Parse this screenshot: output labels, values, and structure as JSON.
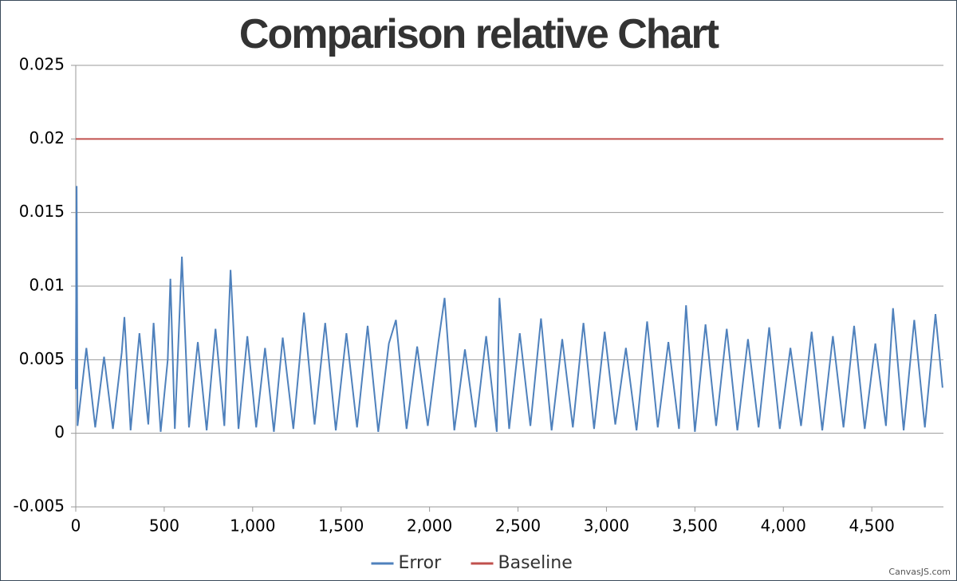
{
  "chart_data": {
    "type": "line",
    "title": "Comparison relative Chart",
    "credit": "CanvasJS.com",
    "xlim": [
      0,
      4905
    ],
    "ylim": [
      -0.005,
      0.025
    ],
    "xticks": [
      0,
      500,
      {
        "value": 1000,
        "label": "1,000"
      },
      {
        "value": 1500,
        "label": "1,500"
      },
      {
        "value": 2000,
        "label": "2,000"
      },
      {
        "value": 2500,
        "label": "2,500"
      },
      {
        "value": 3000,
        "label": "3,000"
      },
      {
        "value": 3500,
        "label": "3,500"
      },
      {
        "value": 4000,
        "label": "4,000"
      },
      {
        "value": 4500,
        "label": "4,500"
      }
    ],
    "yticks": [
      -0.005,
      0,
      0.005,
      0.01,
      0.015,
      0.02,
      0.025
    ],
    "grid": true,
    "legend": "bottom",
    "series": [
      {
        "name": "Error",
        "color": "#4f81bc",
        "x": [
          0,
          5,
          10,
          60,
          110,
          160,
          210,
          260,
          275,
          310,
          360,
          410,
          440,
          480,
          520,
          535,
          560,
          600,
          640,
          690,
          740,
          790,
          840,
          875,
          920,
          970,
          1020,
          1070,
          1120,
          1170,
          1230,
          1290,
          1350,
          1410,
          1470,
          1530,
          1590,
          1650,
          1710,
          1770,
          1810,
          1870,
          1930,
          1990,
          2050,
          2085,
          2140,
          2200,
          2260,
          2320,
          2380,
          2395,
          2450,
          2510,
          2570,
          2630,
          2690,
          2750,
          2810,
          2870,
          2930,
          2990,
          3050,
          3110,
          3170,
          3230,
          3290,
          3350,
          3410,
          3450,
          3500,
          3560,
          3620,
          3680,
          3740,
          3800,
          3860,
          3920,
          3980,
          4040,
          4100,
          4160,
          4220,
          4280,
          4340,
          4400,
          4460,
          4520,
          4580,
          4620,
          4680,
          4740,
          4800,
          4860,
          4900
        ],
        "values": [
          0.003,
          0.0168,
          0.0005,
          0.0058,
          0.0004,
          0.0052,
          0.0003,
          0.0055,
          0.0079,
          0.0002,
          0.0068,
          0.0006,
          0.0075,
          0.0001,
          0.005,
          0.0105,
          0.0003,
          0.012,
          0.0004,
          0.0062,
          0.0002,
          0.0071,
          0.0005,
          0.0111,
          0.0003,
          0.0066,
          0.0004,
          0.0058,
          0.0001,
          0.0065,
          0.0003,
          0.0082,
          0.0006,
          0.0075,
          0.0002,
          0.0068,
          0.0004,
          0.0073,
          0.0001,
          0.0061,
          0.0077,
          0.0003,
          0.0059,
          0.0005,
          0.0062,
          0.0092,
          0.0002,
          0.0057,
          0.0004,
          0.0066,
          0.0001,
          0.0092,
          0.0003,
          0.0068,
          0.0005,
          0.0078,
          0.0002,
          0.0064,
          0.0004,
          0.0075,
          0.0003,
          0.0069,
          0.0006,
          0.0058,
          0.0002,
          0.0076,
          0.0004,
          0.0062,
          0.0003,
          0.0087,
          0.0001,
          0.0074,
          0.0005,
          0.0071,
          0.0002,
          0.0064,
          0.0004,
          0.0072,
          0.0003,
          0.0058,
          0.0005,
          0.0069,
          0.0002,
          0.0066,
          0.0004,
          0.0073,
          0.0003,
          0.0061,
          0.0005,
          0.0085,
          0.0002,
          0.0077,
          0.0004,
          0.0081,
          0.0031
        ]
      },
      {
        "name": "Baseline",
        "color": "#c0504d",
        "x": [
          0,
          4905
        ],
        "values": [
          0.02,
          0.02
        ]
      }
    ]
  }
}
